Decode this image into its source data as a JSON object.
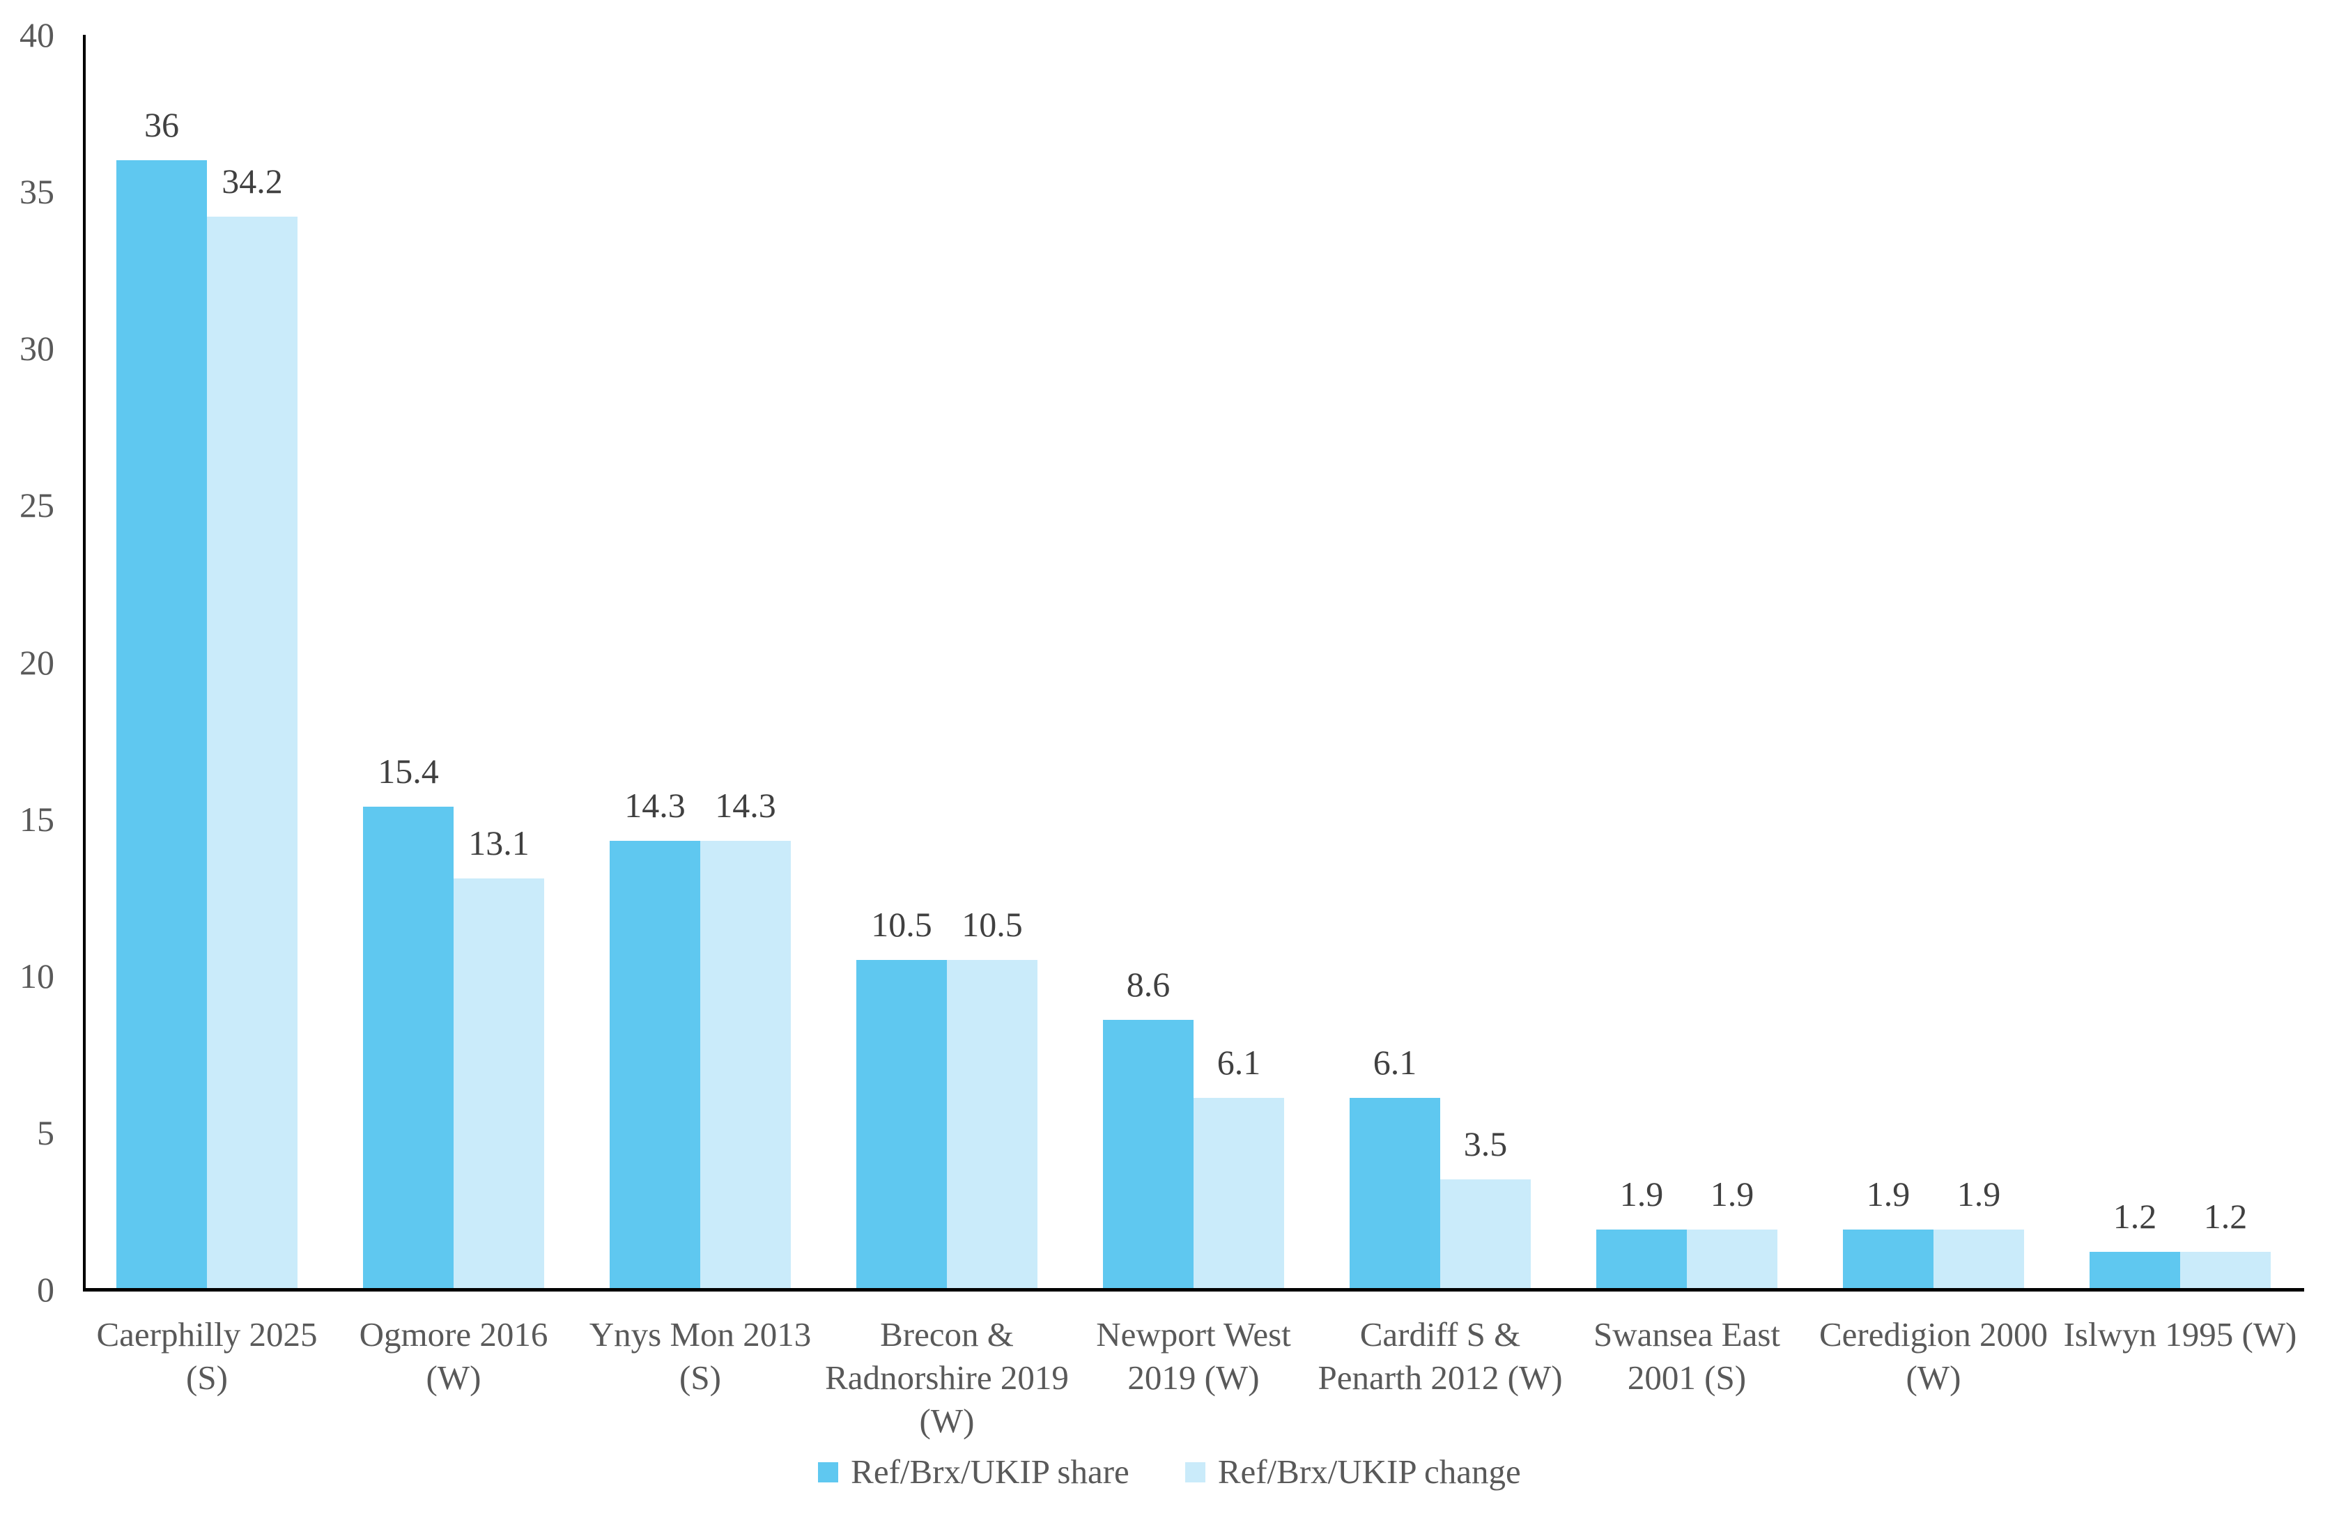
{
  "chart_data": {
    "type": "bar",
    "title": "",
    "categories": [
      "Caerphilly 2025\n(S)",
      "Ogmore 2016\n(W)",
      "Ynys Mon 2013\n(S)",
      "Brecon &\nRadnorshire 2019\n(W)",
      "Newport West\n2019 (W)",
      "Cardiff S &\nPenarth 2012 (W)",
      "Swansea East\n2001 (S)",
      "Ceredigion 2000\n(W)",
      "Islwyn 1995 (W)"
    ],
    "series": [
      {
        "name": "Ref/Brx/UKIP share",
        "color": "#5FC8F0",
        "values": [
          36,
          15.4,
          14.3,
          10.5,
          8.6,
          6.1,
          1.9,
          1.9,
          1.2
        ],
        "data_labels": [
          "36",
          "15.4",
          "14.3",
          "10.5",
          "8.6",
          "6.1",
          "1.9",
          "1.9",
          "1.2"
        ]
      },
      {
        "name": "Ref/Brx/UKIP change",
        "color": "#CAEBFA",
        "values": [
          34.2,
          13.1,
          14.3,
          10.5,
          6.1,
          3.5,
          1.9,
          1.9,
          1.2
        ],
        "data_labels": [
          "34.2",
          "13.1",
          "14.3",
          "10.5",
          "6.1",
          "3.5",
          "1.9",
          "1.9",
          "1.2"
        ]
      }
    ],
    "xlabel": "",
    "ylabel": "",
    "ylim": [
      0,
      40
    ],
    "yticks": [
      0,
      5,
      10,
      15,
      20,
      25,
      30,
      35,
      40
    ],
    "grid": false,
    "legend_position": "bottom",
    "axis_color": "#000000",
    "tick_text_color": "#595959",
    "data_label_color": "#404040"
  }
}
